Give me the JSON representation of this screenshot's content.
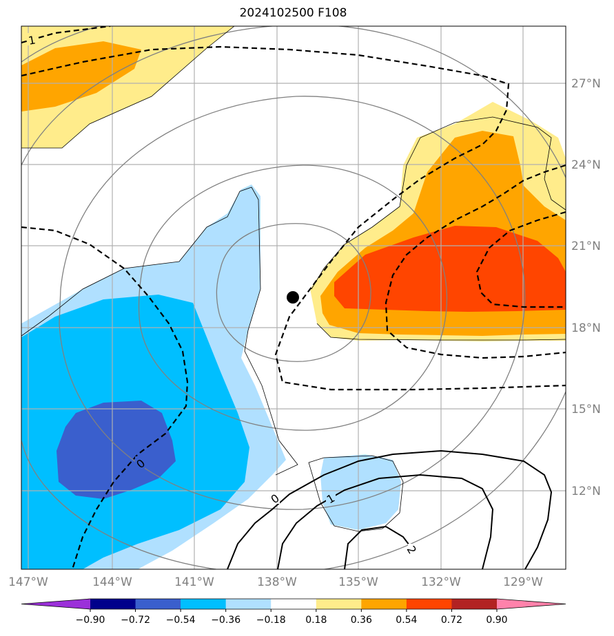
{
  "title": "2024102500 F108",
  "map": {
    "lon_ticks": [
      "147°W",
      "144°W",
      "141°W",
      "138°W",
      "135°W",
      "132°W",
      "129°W"
    ],
    "lat_ticks": [
      "27°N",
      "24°N",
      "21°N",
      "18°N",
      "15°N",
      "12°N"
    ],
    "contour_labels": {
      "dashed_top": "1",
      "dashed_zero": "0",
      "solid_zero": "0",
      "solid_one": "1",
      "solid_two": "2"
    },
    "center_marker": "storm-center-dot"
  },
  "colorbar": {
    "levels": [
      "−0.90",
      "−0.72",
      "−0.54",
      "−0.36",
      "−0.18",
      "0.18",
      "0.36",
      "0.54",
      "0.72",
      "0.90"
    ],
    "colors": [
      "#9b30d9",
      "#00008b",
      "#3a5fcd",
      "#00bfff",
      "#b0e0ff",
      "#ffffff",
      "#ffec8b",
      "#ffa500",
      "#ff4500",
      "#b22222",
      "#ff82ab"
    ]
  }
}
